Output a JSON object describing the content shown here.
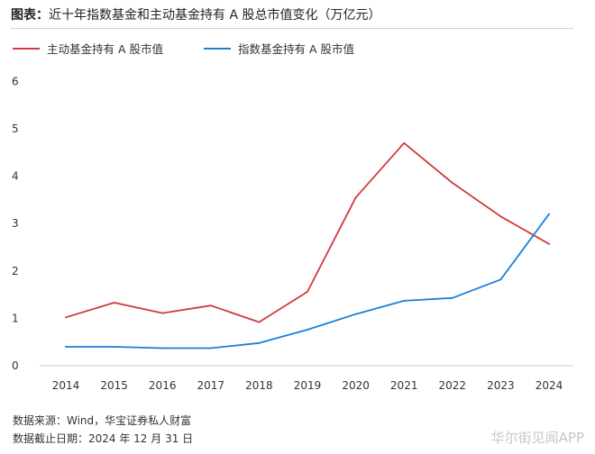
{
  "header": {
    "title_prefix": "图表：",
    "title_text": "近十年指数基金和主动基金持有 A 股总市值变化（万亿元）"
  },
  "legend": {
    "items": [
      {
        "label": "主动基金持有 A 股市值",
        "color": "#d0393e"
      },
      {
        "label": "指数基金持有 A 股市值",
        "color": "#1a7fd6"
      }
    ]
  },
  "chart_data": {
    "type": "line",
    "title": "近十年指数基金和主动基金持有 A 股总市值变化（万亿元）",
    "x": [
      "2014",
      "2015",
      "2016",
      "2017",
      "2018",
      "2019",
      "2020",
      "2021",
      "2022",
      "2023",
      "2024"
    ],
    "y_ticks": [
      "0",
      "1",
      "2",
      "3",
      "4",
      "5",
      "6"
    ],
    "ylim": [
      0,
      6
    ],
    "grid": false,
    "legend_position": "top-left",
    "series": [
      {
        "name": "主动基金持有 A 股市值",
        "color": "#d0393e",
        "values": [
          1.02,
          1.33,
          1.11,
          1.27,
          0.92,
          1.56,
          3.55,
          4.7,
          3.86,
          3.15,
          2.57
        ]
      },
      {
        "name": "指数基金持有 A 股市值",
        "color": "#1a7fd6",
        "values": [
          0.4,
          0.4,
          0.37,
          0.37,
          0.48,
          0.76,
          1.09,
          1.37,
          1.43,
          1.82,
          3.2
        ]
      }
    ]
  },
  "footer": {
    "source": "数据来源：Wind，华宝证券私人财富",
    "date": "数据截止日期：2024 年 12 月 31 日",
    "watermark": "华尔街见闻APP"
  }
}
